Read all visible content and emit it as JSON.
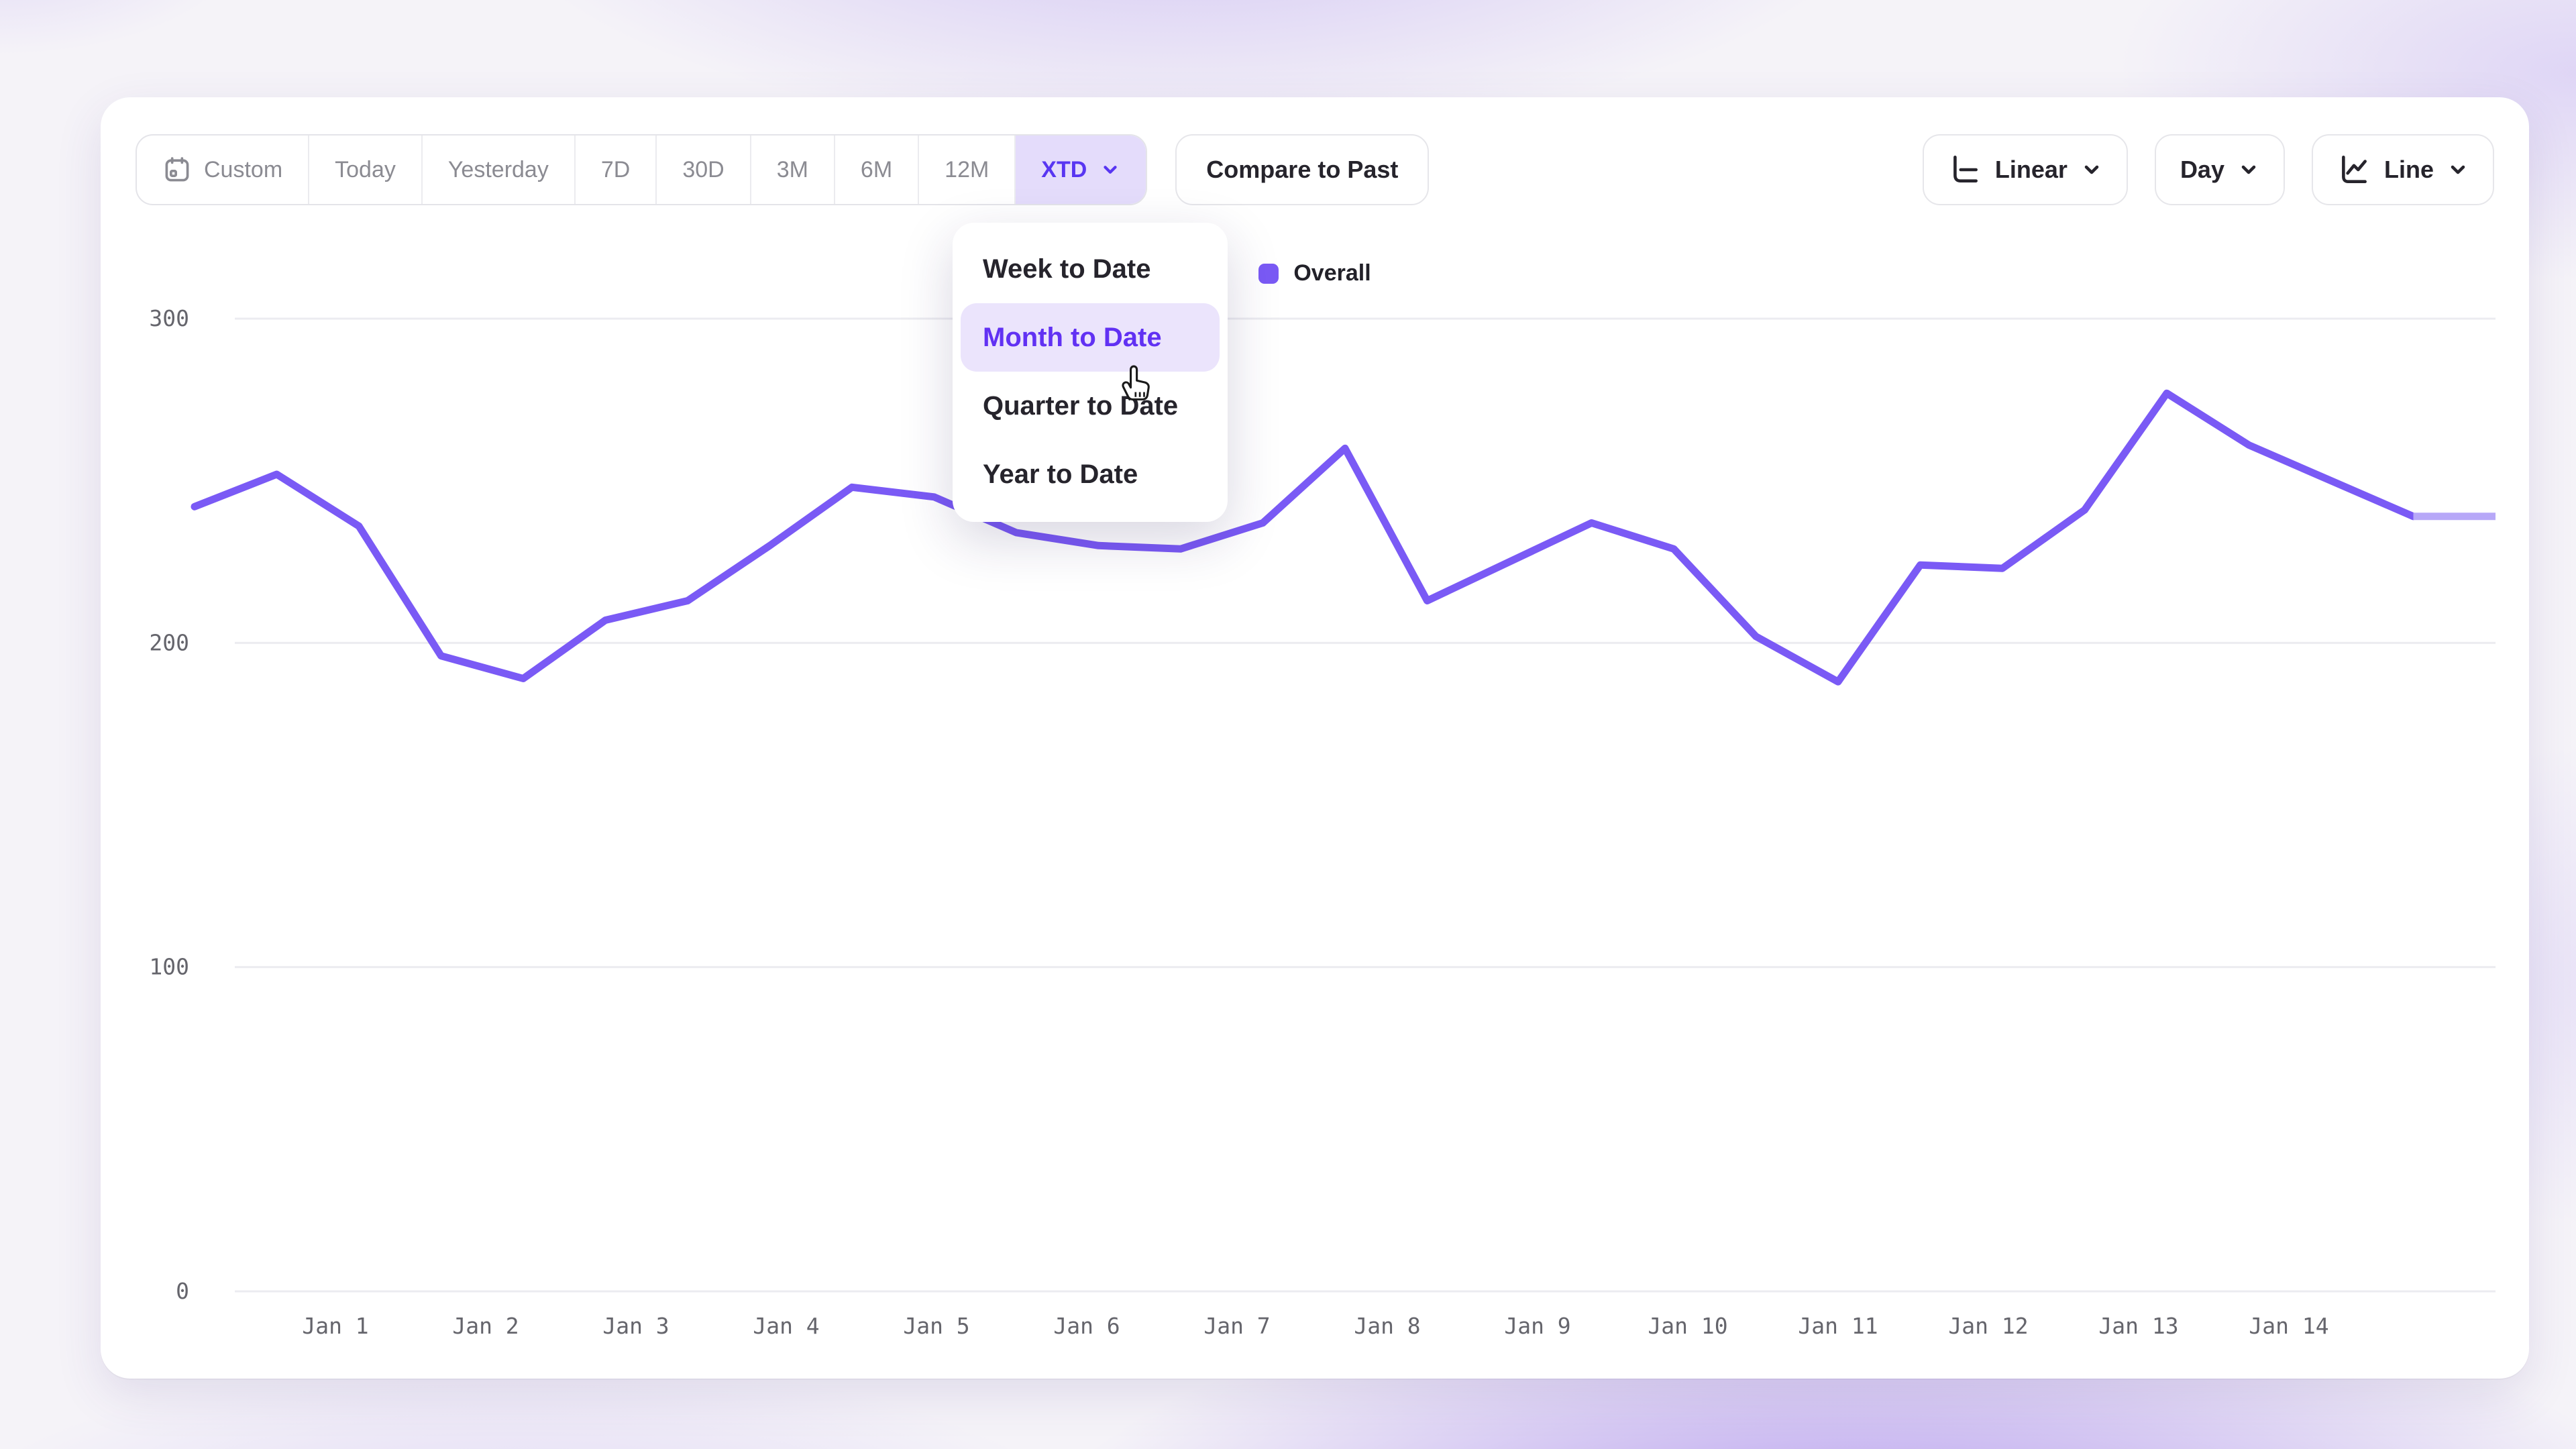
{
  "toolbar": {
    "ranges": [
      {
        "label": "Custom",
        "icon": "calendar-icon",
        "selected": false
      },
      {
        "label": "Today",
        "selected": false
      },
      {
        "label": "Yesterday",
        "selected": false
      },
      {
        "label": "7D",
        "selected": false
      },
      {
        "label": "30D",
        "selected": false
      },
      {
        "label": "3M",
        "selected": false
      },
      {
        "label": "6M",
        "selected": false
      },
      {
        "label": "12M",
        "selected": false
      },
      {
        "label": "XTD",
        "selected": true,
        "chevron": true
      }
    ],
    "compare_label": "Compare to Past",
    "controls": [
      {
        "label": "Linear",
        "icon": "axis-icon",
        "chevron": true
      },
      {
        "label": "Day",
        "chevron": true
      },
      {
        "label": "Line",
        "icon": "line-chart-icon",
        "chevron": true
      }
    ]
  },
  "dropdown": {
    "items": [
      {
        "label": "Week to Date",
        "highlighted": false
      },
      {
        "label": "Month to Date",
        "highlighted": true
      },
      {
        "label": "Quarter to Date",
        "highlighted": false
      },
      {
        "label": "Year to Date",
        "highlighted": false
      }
    ]
  },
  "legend": {
    "label": "Overall",
    "color": "#7a5af5"
  },
  "colors": {
    "line": "#7a5af5",
    "line_faded_tail": "#b7a8f8",
    "selected_bg": "#e4dcfb",
    "selected_text": "#5836f2",
    "grid": "#ececf0"
  },
  "chart_data": {
    "type": "line",
    "series": [
      {
        "name": "Overall",
        "color": "#7a5af5",
        "values": [
          242,
          252,
          236,
          196,
          189,
          207,
          213,
          230,
          248,
          245,
          234,
          230,
          229,
          237,
          260,
          213,
          225,
          237,
          229,
          202,
          188,
          224,
          223,
          241,
          277,
          261,
          250,
          239,
          239
        ],
        "faded_tail_segments": 1
      }
    ],
    "x_tick_labels": [
      "Jan 1",
      "Jan 2",
      "Jan 3",
      "Jan 4",
      "Jan 5",
      "Jan 6",
      "Jan 7",
      "Jan 8",
      "Jan 9",
      "Jan 10",
      "Jan 11",
      "Jan 12",
      "Jan 13",
      "Jan 14"
    ],
    "yticks": [
      0,
      100,
      200,
      300
    ],
    "ylim": [
      0,
      300
    ],
    "grid": "horizontal",
    "legend_position": "top-center"
  }
}
